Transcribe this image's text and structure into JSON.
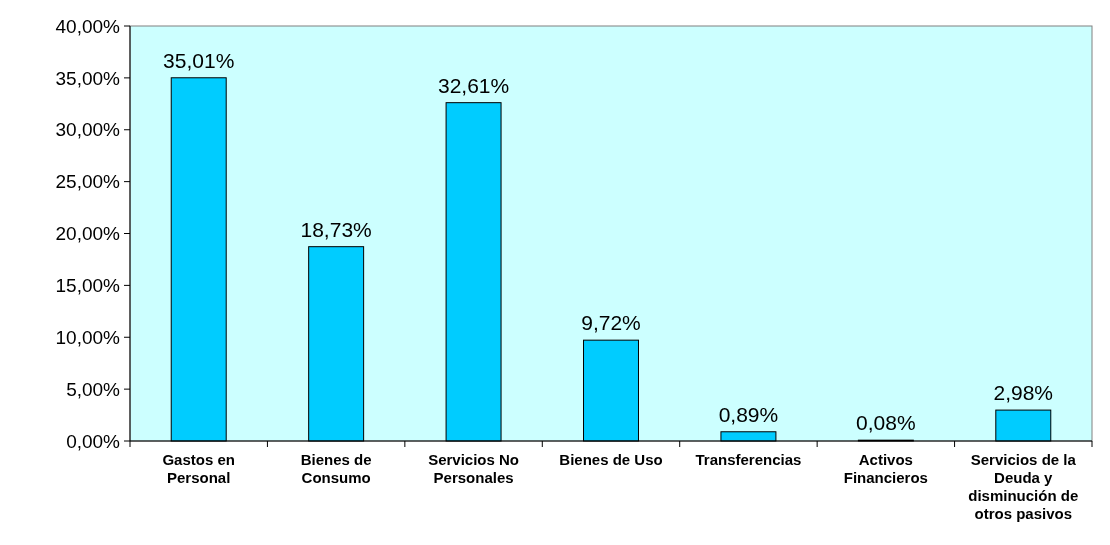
{
  "chart_data": {
    "type": "bar",
    "categories": [
      "Gastos en Personal",
      "Bienes de Consumo",
      "Servicios No Personales",
      "Bienes de Uso",
      "Transferencias",
      "Activos Financieros",
      "Servicios de la Deuda y disminución de otros pasivos"
    ],
    "values": [
      35.01,
      18.73,
      32.61,
      9.72,
      0.89,
      0.08,
      2.98
    ],
    "value_labels": [
      "35,01%",
      "18,73%",
      "32,61%",
      "9,72%",
      "0,89%",
      "0,08%",
      "2,98%"
    ],
    "color": "#00ccff",
    "ylim": [
      0,
      40
    ],
    "yticks": [
      {
        "value": 0,
        "label": "0,00%"
      },
      {
        "value": 5,
        "label": "5,00%"
      },
      {
        "value": 10,
        "label": "10,00%"
      },
      {
        "value": 15,
        "label": "15,00%"
      },
      {
        "value": 20,
        "label": "20,00%"
      },
      {
        "value": 25,
        "label": "25,00%"
      },
      {
        "value": 30,
        "label": "30,00%"
      },
      {
        "value": 35,
        "label": "35,00%"
      },
      {
        "value": 40,
        "label": "40,00%"
      }
    ],
    "grid": false
  }
}
